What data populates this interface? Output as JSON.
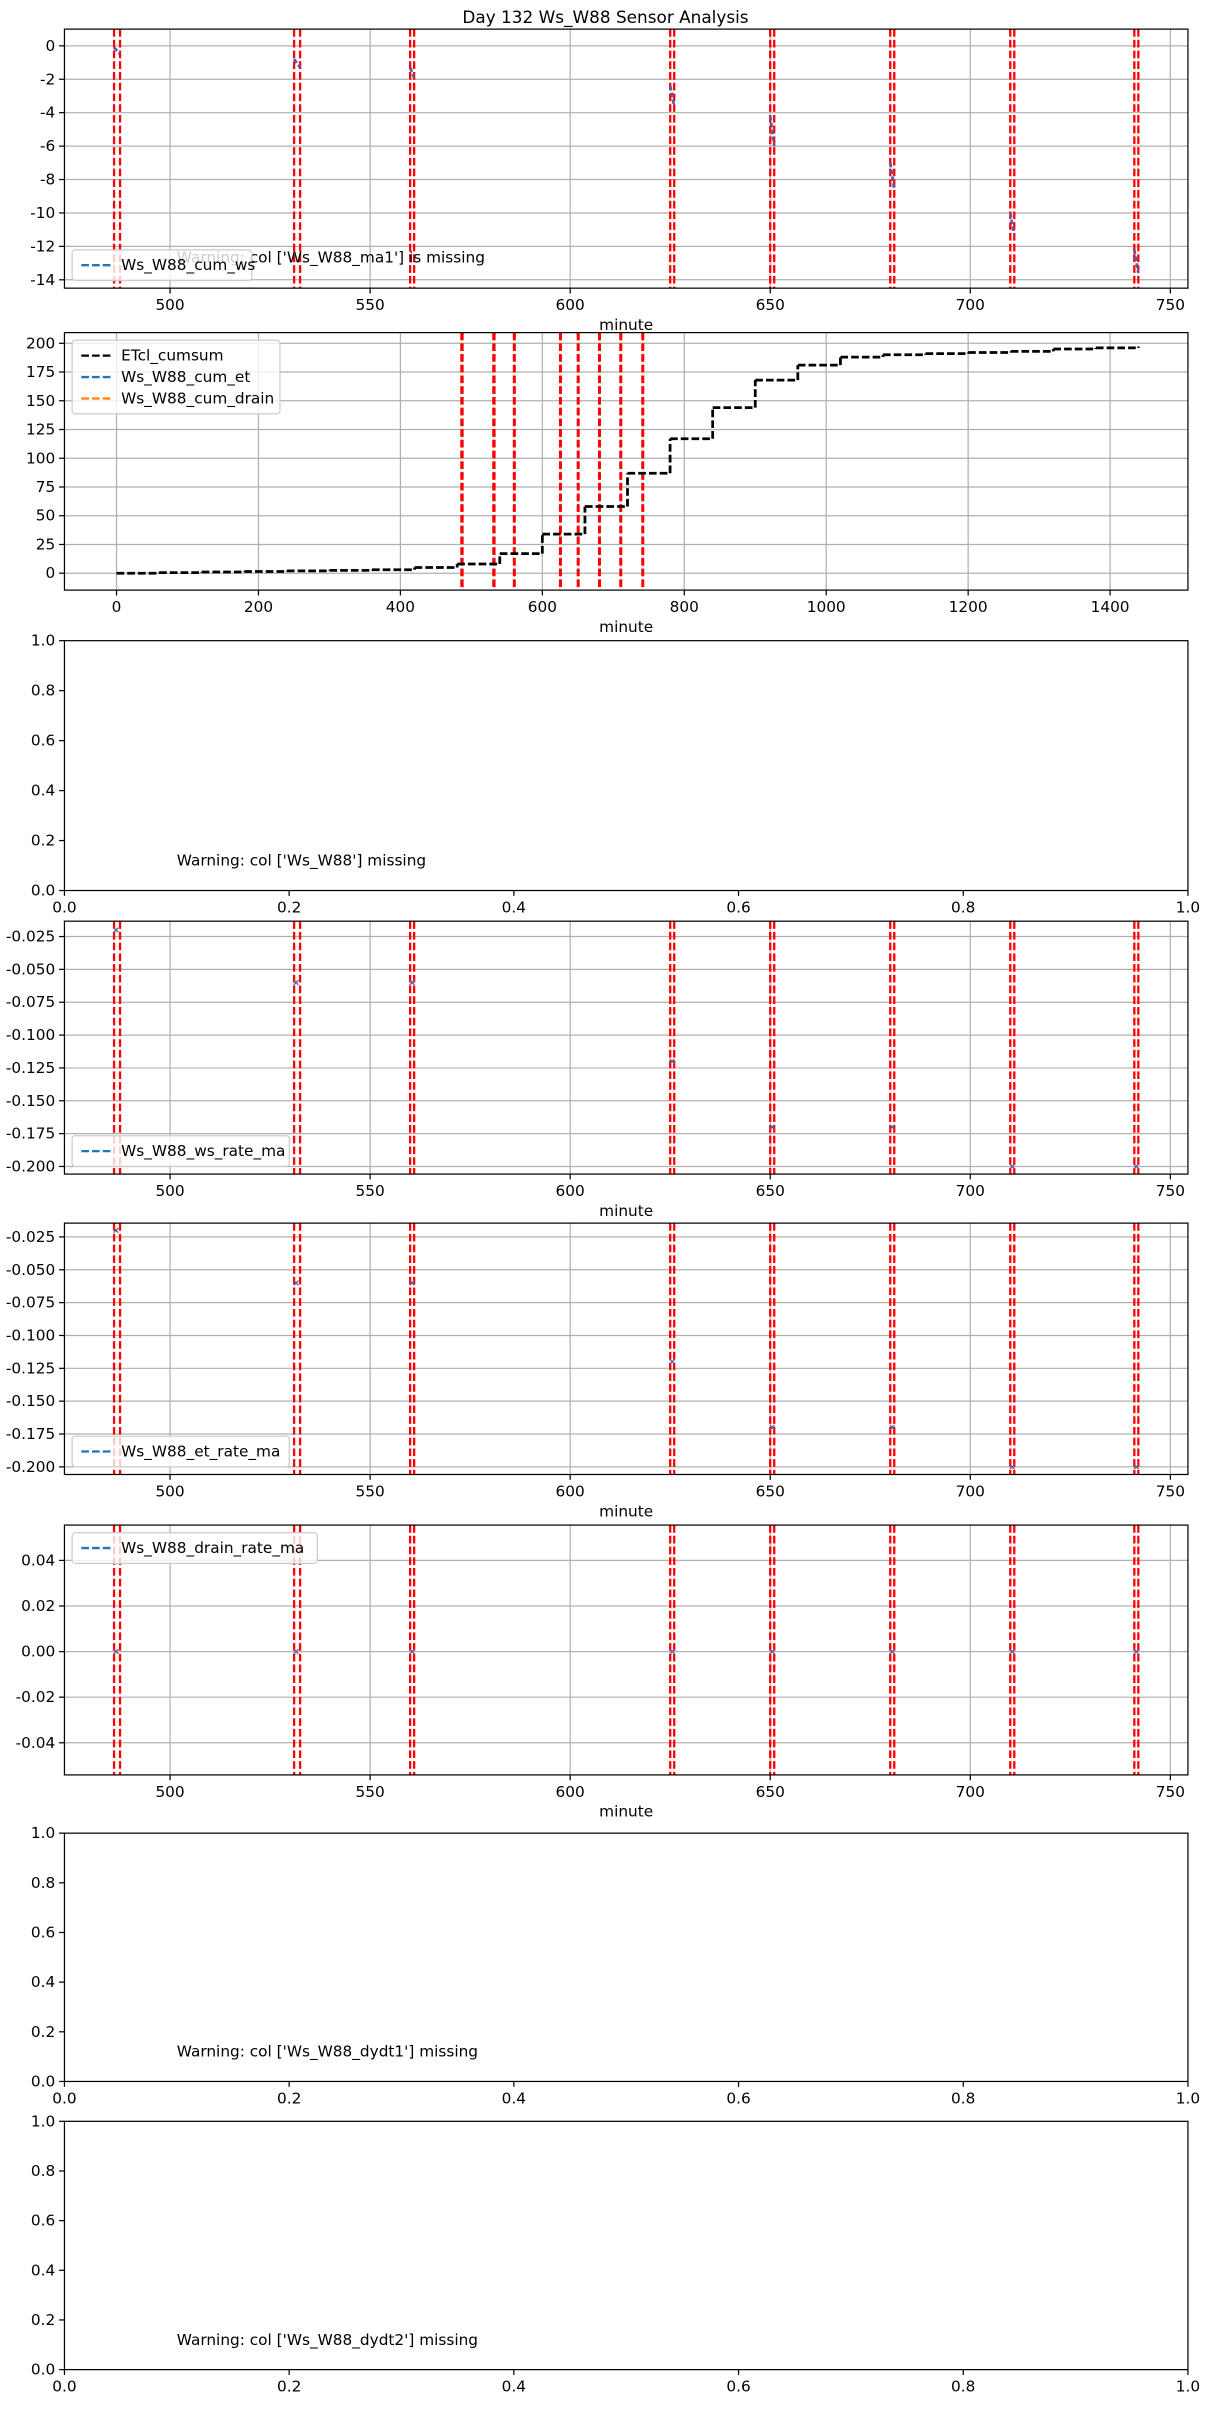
{
  "title": "Day 132 Ws_W88 Sensor Analysis",
  "chart_data": [
    {
      "type": "line",
      "xlabel": "minute",
      "annotation": "Warning: col ['Ws_W88_ma1'] is missing",
      "xlim": [
        473.6,
        754.4
      ],
      "ylim": [
        -14.5,
        1.0
      ],
      "xticks": [
        500,
        550,
        600,
        650,
        700,
        750
      ],
      "yticks": [
        0,
        -2,
        -4,
        -6,
        -8,
        -10,
        -12,
        -14
      ],
      "grid": true,
      "legend": "lower left",
      "vlines": {
        "color": "#ff0000",
        "x": [
          486,
          487.5,
          531,
          532.5,
          560,
          561,
          625,
          626,
          650,
          651,
          680,
          681,
          710,
          711,
          741,
          742
        ]
      },
      "series": [
        {
          "name": "Ws_W88_cum_ws",
          "color": "#1f77b4",
          "linestyle": "dashed",
          "x": [
            486,
            487.5,
            null,
            531,
            532.5,
            null,
            560,
            561,
            null,
            625,
            626,
            null,
            650,
            651,
            null,
            680,
            681,
            null,
            710,
            711,
            null,
            741,
            742
          ],
          "values": [
            -0.1,
            -0.5,
            null,
            -0.8,
            -1.3,
            null,
            -1.3,
            -1.9,
            null,
            -2.4,
            -3.6,
            null,
            -4.2,
            -6,
            null,
            -7,
            -8.6,
            null,
            -10,
            -11.3,
            null,
            -12.2,
            -13.6
          ]
        }
      ]
    },
    {
      "type": "line",
      "xlabel": "minute",
      "xlim": [
        -73.4,
        1509.7
      ],
      "ylim": [
        -14.7,
        209.3
      ],
      "xticks": [
        0,
        200,
        400,
        600,
        800,
        1000,
        1200,
        1400
      ],
      "yticks": [
        0,
        25,
        50,
        75,
        100,
        125,
        150,
        175,
        200
      ],
      "grid": true,
      "legend": "upper left",
      "vlines": {
        "color": "#ff0000",
        "x": [
          486,
          487.5,
          531,
          532.5,
          560,
          561,
          625,
          626,
          650,
          651,
          680,
          681,
          710,
          711,
          741,
          742
        ]
      },
      "series": [
        {
          "name": "ETcl_cumsum",
          "color": "#000000",
          "linestyle": "dashed",
          "drawstyle": "steps-post",
          "x": [
            0,
            60,
            120,
            180,
            240,
            300,
            360,
            420,
            480,
            540,
            600,
            660,
            720,
            780,
            840,
            900,
            960,
            1020,
            1080,
            1140,
            1200,
            1260,
            1320,
            1380,
            1440
          ],
          "values": [
            0,
            0.5,
            1,
            1.5,
            2,
            2.5,
            3,
            5,
            8,
            17,
            34,
            58,
            87,
            117,
            144,
            168,
            181,
            188,
            190,
            191,
            192,
            193,
            195,
            196,
            197
          ]
        },
        {
          "name": "Ws_W88_cum_et",
          "color": "#1f77b4",
          "linestyle": "dashed",
          "x": [],
          "values": []
        },
        {
          "name": "Ws_W88_cum_drain",
          "color": "#ff7f0e",
          "linestyle": "dashed",
          "x": [],
          "values": []
        }
      ]
    },
    {
      "type": "line",
      "annotation": "Warning: col ['Ws_W88'] missing",
      "xlim": [
        0,
        1
      ],
      "ylim": [
        0,
        1
      ],
      "xticks": [
        {
          "value": 0,
          "label": "0.0"
        },
        {
          "value": 0.2,
          "label": "0.2"
        },
        {
          "value": 0.4,
          "label": "0.4"
        },
        {
          "value": 0.6,
          "label": "0.6"
        },
        {
          "value": 0.8,
          "label": "0.8"
        },
        {
          "value": 1,
          "label": "1.0"
        }
      ],
      "yticks": [
        {
          "value": 0,
          "label": "0.0"
        },
        {
          "value": 0.2,
          "label": "0.2"
        },
        {
          "value": 0.4,
          "label": "0.4"
        },
        {
          "value": 0.6,
          "label": "0.6"
        },
        {
          "value": 0.8,
          "label": "0.8"
        },
        {
          "value": 1,
          "label": "1.0"
        }
      ],
      "grid": false
    },
    {
      "type": "line",
      "xlabel": "minute",
      "xlim": [
        473.6,
        754.4
      ],
      "ylim": [
        -0.2058,
        -0.0133
      ],
      "xticks": [
        500,
        550,
        600,
        650,
        700,
        750
      ],
      "yticks": [
        -0.025,
        {
          "value": -0.05,
          "label": "-0.050"
        },
        -0.075,
        {
          "value": -0.1,
          "label": "-0.100"
        },
        -0.125,
        {
          "value": -0.15,
          "label": "-0.150"
        },
        -0.175,
        {
          "value": -0.2,
          "label": "-0.200"
        }
      ],
      "grid": true,
      "legend": "lower left",
      "vlines": {
        "color": "#ff0000",
        "x": [
          486,
          487.5,
          531,
          532.5,
          560,
          561,
          625,
          626,
          650,
          651,
          680,
          681,
          710,
          711,
          741,
          742
        ]
      },
      "series": [
        {
          "name": "Ws_W88_ws_rate_ma",
          "color": "#1f77b4",
          "linestyle": "dashed",
          "marker": "x",
          "x": [
            486.5,
            531.5,
            560.5,
            625.5,
            650.5,
            680.5,
            710.5,
            741.5
          ],
          "values": [
            -0.02,
            -0.06,
            -0.06,
            -0.12,
            -0.17,
            -0.17,
            -0.2,
            -0.2
          ]
        }
      ]
    },
    {
      "type": "line",
      "xlabel": "minute",
      "xlim": [
        473.6,
        754.4
      ],
      "ylim": [
        -0.2058,
        -0.0145
      ],
      "xticks": [
        500,
        550,
        600,
        650,
        700,
        750
      ],
      "yticks": [
        -0.025,
        {
          "value": -0.05,
          "label": "-0.050"
        },
        -0.075,
        {
          "value": -0.1,
          "label": "-0.100"
        },
        -0.125,
        {
          "value": -0.15,
          "label": "-0.150"
        },
        -0.175,
        {
          "value": -0.2,
          "label": "-0.200"
        }
      ],
      "grid": true,
      "legend": "lower left",
      "vlines": {
        "color": "#ff0000",
        "x": [
          486,
          487.5,
          531,
          532.5,
          560,
          561,
          625,
          626,
          650,
          651,
          680,
          681,
          710,
          711,
          741,
          742
        ]
      },
      "series": [
        {
          "name": "Ws_W88_et_rate_ma",
          "color": "#1f77b4",
          "linestyle": "dashed",
          "marker": "x",
          "x": [
            486.5,
            531.5,
            560.5,
            625.5,
            650.5,
            680.5,
            710.5,
            741.5
          ],
          "values": [
            -0.02,
            -0.06,
            -0.06,
            -0.12,
            -0.17,
            -0.17,
            -0.2,
            -0.2
          ]
        }
      ]
    },
    {
      "type": "line",
      "xlabel": "minute",
      "xlim": [
        473.6,
        754.4
      ],
      "ylim": [
        -0.0541,
        0.0555
      ],
      "xticks": [
        500,
        550,
        600,
        650,
        700,
        750
      ],
      "yticks": [
        0.04,
        0.02,
        {
          "value": 0,
          "label": "0.00"
        },
        -0.02,
        -0.04
      ],
      "grid": true,
      "legend": "upper left",
      "vlines": {
        "color": "#ff0000",
        "x": [
          486,
          487.5,
          531,
          532.5,
          560,
          561,
          625,
          626,
          650,
          651,
          680,
          681,
          710,
          711,
          741,
          742
        ]
      },
      "series": [
        {
          "name": "Ws_W88_drain_rate_ma",
          "color": "#1f77b4",
          "linestyle": "dashed",
          "marker": "x",
          "x": [
            486.5,
            531.5,
            560.5,
            625.5,
            650.5,
            680.5,
            710.5,
            741.5
          ],
          "values": [
            0,
            0,
            0,
            0,
            0,
            0,
            0,
            0
          ]
        }
      ]
    },
    {
      "type": "line",
      "annotation": "Warning: col ['Ws_W88_dydt1'] missing",
      "xlim": [
        0,
        1
      ],
      "ylim": [
        0,
        1
      ],
      "xticks": [
        {
          "value": 0,
          "label": "0.0"
        },
        {
          "value": 0.2,
          "label": "0.2"
        },
        {
          "value": 0.4,
          "label": "0.4"
        },
        {
          "value": 0.6,
          "label": "0.6"
        },
        {
          "value": 0.8,
          "label": "0.8"
        },
        {
          "value": 1,
          "label": "1.0"
        }
      ],
      "yticks": [
        {
          "value": 0,
          "label": "0.0"
        },
        {
          "value": 0.2,
          "label": "0.2"
        },
        {
          "value": 0.4,
          "label": "0.4"
        },
        {
          "value": 0.6,
          "label": "0.6"
        },
        {
          "value": 0.8,
          "label": "0.8"
        },
        {
          "value": 1,
          "label": "1.0"
        }
      ],
      "grid": false
    },
    {
      "type": "line",
      "annotation": "Warning: col ['Ws_W88_dydt2'] missing",
      "xlim": [
        0,
        1
      ],
      "ylim": [
        0,
        1
      ],
      "xticks": [
        {
          "value": 0,
          "label": "0.0"
        },
        {
          "value": 0.2,
          "label": "0.2"
        },
        {
          "value": 0.4,
          "label": "0.4"
        },
        {
          "value": 0.6,
          "label": "0.6"
        },
        {
          "value": 0.8,
          "label": "0.8"
        },
        {
          "value": 1,
          "label": "1.0"
        }
      ],
      "yticks": [
        {
          "value": 0,
          "label": "0.0"
        },
        {
          "value": 0.2,
          "label": "0.2"
        },
        {
          "value": 0.4,
          "label": "0.4"
        },
        {
          "value": 0.6,
          "label": "0.6"
        },
        {
          "value": 0.8,
          "label": "0.8"
        },
        {
          "value": 1,
          "label": "1.0"
        }
      ],
      "grid": false
    }
  ]
}
